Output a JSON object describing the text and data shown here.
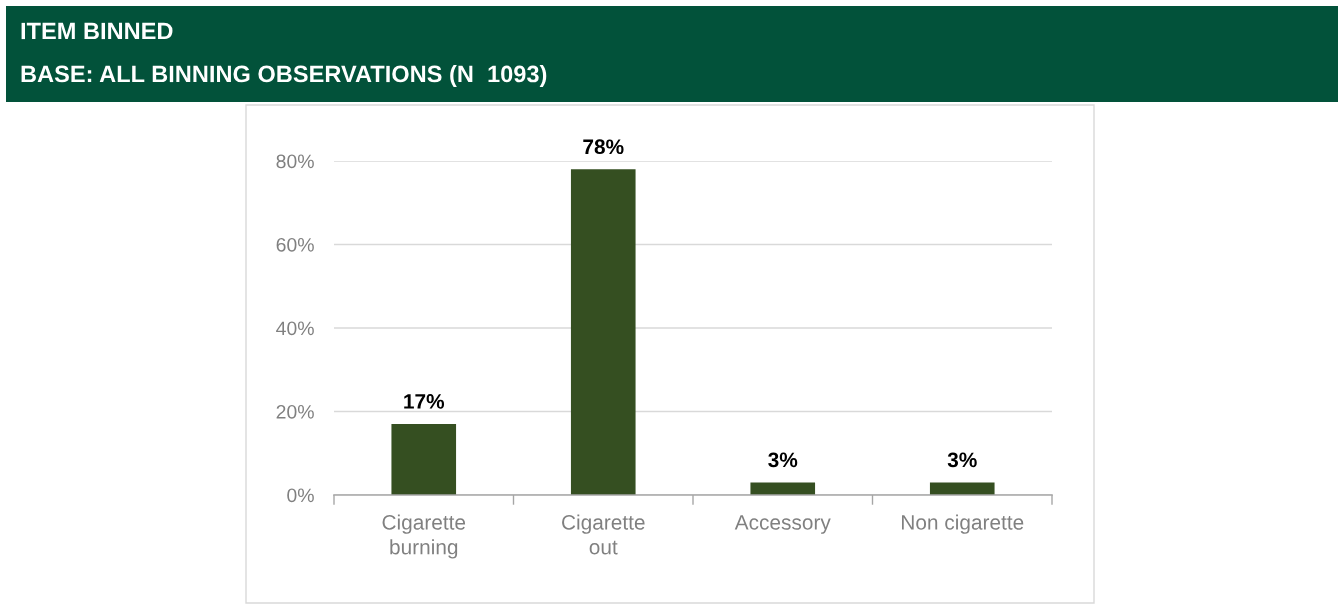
{
  "chart_data": {
    "type": "bar",
    "title": "ITEM BINNED",
    "subtitle": "BASE: ALL BINNING OBSERVATIONS (N  1093)",
    "categories": [
      "Cigarette\nburning",
      "Cigarette\nout",
      "Accessory",
      "Non cigarette"
    ],
    "values": [
      17,
      78,
      3,
      3
    ],
    "value_labels": [
      "17%",
      "78%",
      "3%",
      "3%"
    ],
    "color": "#354f21",
    "ylim": [
      0,
      80
    ],
    "yticks": [
      {
        "value": 0,
        "label": "0%"
      },
      {
        "value": 20,
        "label": "20%"
      },
      {
        "value": 40,
        "label": "40%"
      },
      {
        "value": 60,
        "label": "60%"
      },
      {
        "value": 80,
        "label": "80%"
      }
    ],
    "grid": "y",
    "legend": false
  }
}
